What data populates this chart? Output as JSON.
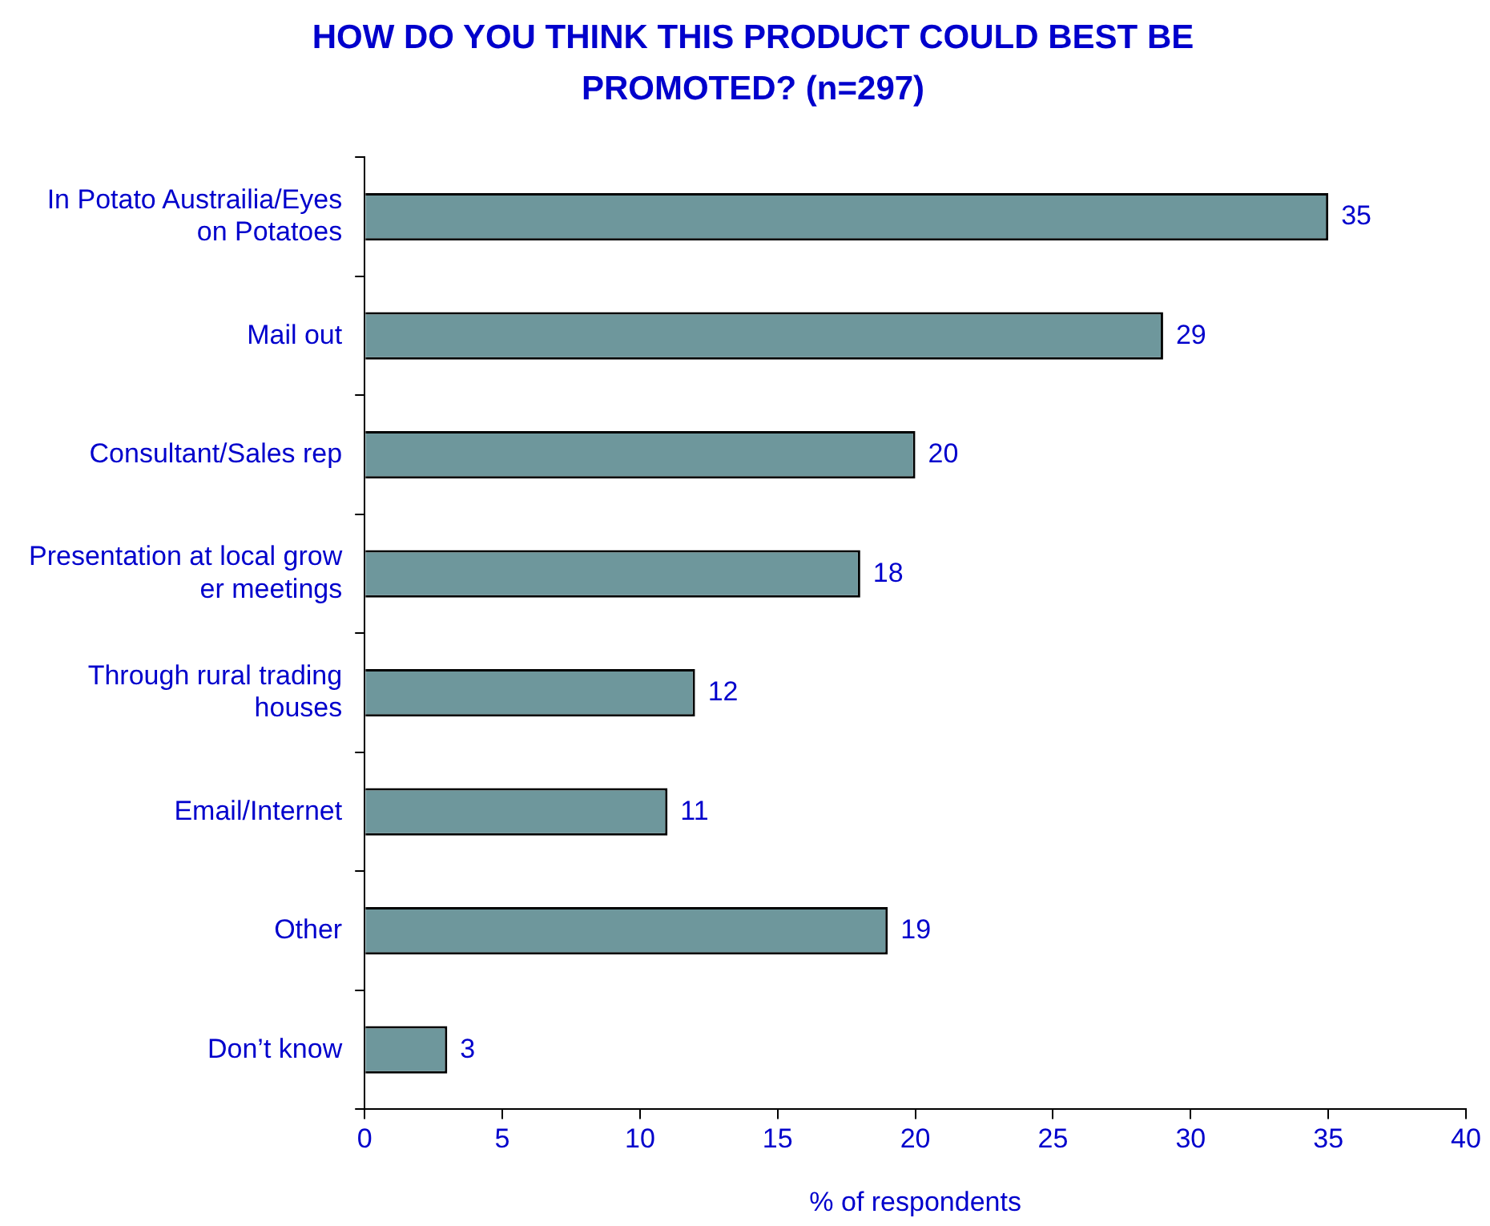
{
  "chart_data": {
    "type": "bar",
    "orientation": "horizontal",
    "title": "HOW DO YOU THINK THIS PRODUCT COULD BEST BE PROMOTED? (n=297)",
    "xlabel": "% of respondents",
    "categories": [
      "In Potato Austrailia/Eyes on Potatoes",
      "Mail out",
      "Consultant/Sales rep",
      "Presentation at local grow er meetings",
      "Through rural trading houses",
      "Email/Internet",
      "Other",
      "Don’t know"
    ],
    "values": [
      35,
      29,
      20,
      18,
      12,
      11,
      19,
      3
    ],
    "color": "#6e979c",
    "xlim": [
      0,
      40
    ],
    "xticks": [
      0,
      5,
      10,
      15,
      20,
      25,
      30,
      35,
      40
    ],
    "data_labels": true,
    "legend": false
  }
}
